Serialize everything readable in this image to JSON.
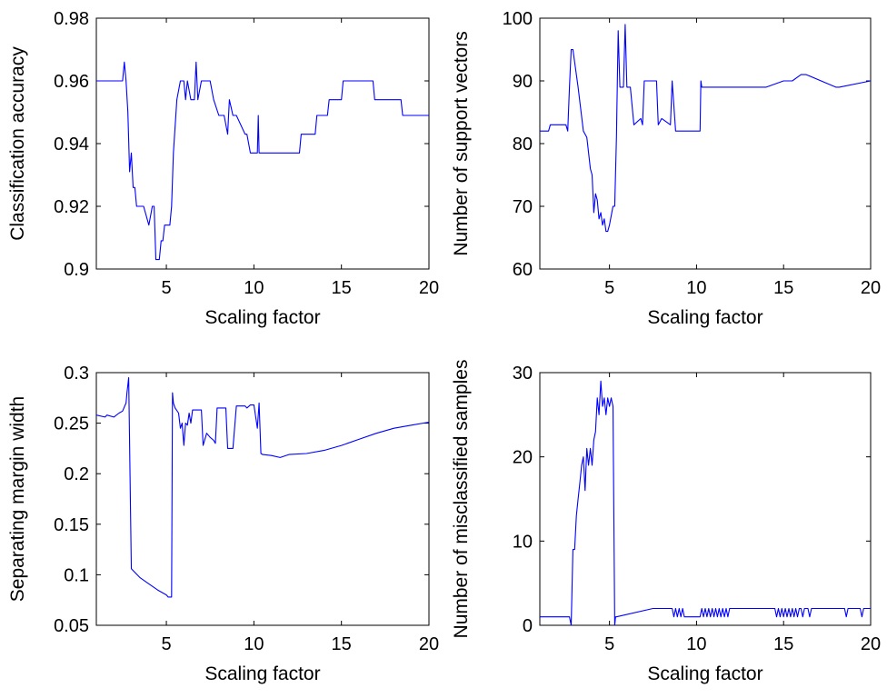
{
  "figure": {
    "line_color": "#0000ff",
    "grid": false
  },
  "chart_data": [
    {
      "type": "line",
      "title": "",
      "xlabel": "Scaling factor",
      "ylabel": "Classification accuracy",
      "xlim": [
        1,
        20
      ],
      "ylim": [
        0.9,
        0.98
      ],
      "xticks": [
        5,
        10,
        15,
        20
      ],
      "xtick_labels": [
        "5",
        "10",
        "15",
        "20"
      ],
      "yticks": [
        0.9,
        0.92,
        0.94,
        0.96,
        0.98
      ],
      "ytick_labels": [
        "0.9",
        "0.92",
        "0.94",
        "0.96",
        "0.98"
      ],
      "series": [
        {
          "x": [
            1,
            2.5,
            2.6,
            2.7,
            2.8,
            2.9,
            3.0,
            3.1,
            3.2,
            3.3,
            3.4,
            3.5,
            3.7,
            4.0,
            4.2,
            4.3,
            4.4,
            4.5,
            4.6,
            4.7,
            4.8,
            4.9,
            5.0,
            5.2,
            5.3,
            5.4,
            5.6,
            5.8,
            6.0,
            6.1,
            6.2,
            6.4,
            6.5,
            6.6,
            6.7,
            6.8,
            7.0,
            7.5,
            7.7,
            8.0,
            8.3,
            8.5,
            8.6,
            8.8,
            9.0,
            9.5,
            9.6,
            9.8,
            10.0,
            10.2,
            10.25,
            10.3,
            10.5,
            11.0,
            12.0,
            12.6,
            12.7,
            13.5,
            13.6,
            14.2,
            14.3,
            15.0,
            15.1,
            16.8,
            16.9,
            18.4,
            18.5,
            20
          ],
          "y": [
            0.96,
            0.96,
            0.966,
            0.96,
            0.95,
            0.931,
            0.937,
            0.926,
            0.926,
            0.92,
            0.92,
            0.92,
            0.92,
            0.914,
            0.92,
            0.92,
            0.903,
            0.903,
            0.903,
            0.909,
            0.909,
            0.914,
            0.914,
            0.914,
            0.92,
            0.937,
            0.954,
            0.96,
            0.96,
            0.954,
            0.96,
            0.954,
            0.954,
            0.954,
            0.966,
            0.954,
            0.96,
            0.96,
            0.954,
            0.949,
            0.949,
            0.943,
            0.954,
            0.949,
            0.949,
            0.943,
            0.943,
            0.937,
            0.937,
            0.937,
            0.949,
            0.937,
            0.937,
            0.937,
            0.937,
            0.937,
            0.943,
            0.943,
            0.949,
            0.949,
            0.954,
            0.954,
            0.96,
            0.96,
            0.954,
            0.954,
            0.949,
            0.949
          ]
        }
      ]
    },
    {
      "type": "line",
      "title": "",
      "xlabel": "Scaling factor",
      "ylabel": "Number of support vectors",
      "xlim": [
        1,
        20
      ],
      "ylim": [
        60,
        100
      ],
      "xticks": [
        5,
        10,
        15,
        20
      ],
      "xtick_labels": [
        "5",
        "10",
        "15",
        "20"
      ],
      "yticks": [
        60,
        70,
        80,
        90,
        100
      ],
      "ytick_labels": [
        "60",
        "70",
        "80",
        "90",
        "100"
      ],
      "series": [
        {
          "x": [
            1,
            1.5,
            1.6,
            2.5,
            2.6,
            2.7,
            2.8,
            2.9,
            3.0,
            3.2,
            3.5,
            3.7,
            3.9,
            4.0,
            4.1,
            4.2,
            4.3,
            4.4,
            4.5,
            4.6,
            4.7,
            4.8,
            4.9,
            5.0,
            5.2,
            5.3,
            5.4,
            5.5,
            5.6,
            5.8,
            5.9,
            6.0,
            6.2,
            6.4,
            6.8,
            6.9,
            7.0,
            7.7,
            7.8,
            8.0,
            8.5,
            8.6,
            8.8,
            9.0,
            9.2,
            9.5,
            10.1,
            10.2,
            10.25,
            10.3,
            10.5,
            14.0,
            15.0,
            15.5,
            16.0,
            16.3,
            18.0,
            18.2,
            20
          ],
          "y": [
            82,
            82,
            83,
            83,
            82,
            89,
            95,
            95,
            93,
            89,
            82,
            81,
            76,
            75,
            69,
            72,
            71,
            68,
            69,
            67,
            68,
            66,
            66,
            67,
            70,
            70,
            81,
            98,
            89,
            89,
            99,
            89,
            89,
            83,
            84,
            83,
            90,
            90,
            83,
            84,
            83,
            90,
            82,
            82,
            82,
            82,
            82,
            82,
            90,
            89,
            89,
            89,
            90,
            90,
            91,
            91,
            89,
            89,
            90
          ]
        }
      ]
    },
    {
      "type": "line",
      "title": "",
      "xlabel": "Scaling factor",
      "ylabel": "Separating margin width",
      "xlim": [
        1,
        20
      ],
      "ylim": [
        0.05,
        0.3
      ],
      "xticks": [
        5,
        10,
        15,
        20
      ],
      "xtick_labels": [
        "5",
        "10",
        "15",
        "20"
      ],
      "yticks": [
        0.05,
        0.1,
        0.15,
        0.2,
        0.25,
        0.3
      ],
      "ytick_labels": [
        "0.05",
        "0.1",
        "0.15",
        "0.2",
        "0.25",
        "0.3"
      ],
      "series": [
        {
          "x": [
            1,
            1.5,
            1.6,
            2.0,
            2.3,
            2.5,
            2.7,
            2.75,
            2.85,
            3.0,
            3.5,
            4.0,
            4.5,
            5.0,
            5.1,
            5.3,
            5.35,
            5.4,
            5.5,
            5.7,
            5.8,
            5.9,
            6.0,
            6.1,
            6.2,
            6.3,
            6.4,
            6.5,
            6.6,
            6.7,
            7.0,
            7.1,
            7.3,
            7.5,
            7.7,
            7.8,
            7.9,
            8.0,
            8.4,
            8.5,
            8.8,
            9.0,
            9.5,
            9.6,
            9.8,
            10.0,
            10.2,
            10.3,
            10.4,
            10.5,
            11.0,
            11.5,
            12.0,
            13.0,
            14.0,
            15.0,
            16.0,
            17.0,
            18.0,
            19.0,
            20.0
          ],
          "y": [
            0.258,
            0.256,
            0.258,
            0.256,
            0.26,
            0.262,
            0.27,
            0.28,
            0.295,
            0.106,
            0.097,
            0.091,
            0.085,
            0.08,
            0.078,
            0.078,
            0.28,
            0.27,
            0.265,
            0.26,
            0.245,
            0.25,
            0.228,
            0.25,
            0.248,
            0.26,
            0.25,
            0.263,
            0.263,
            0.263,
            0.263,
            0.228,
            0.24,
            0.236,
            0.233,
            0.23,
            0.265,
            0.265,
            0.265,
            0.225,
            0.225,
            0.267,
            0.267,
            0.265,
            0.268,
            0.268,
            0.245,
            0.27,
            0.22,
            0.219,
            0.218,
            0.216,
            0.219,
            0.22,
            0.223,
            0.228,
            0.234,
            0.24,
            0.245,
            0.248,
            0.251
          ]
        }
      ]
    },
    {
      "type": "line",
      "title": "",
      "xlabel": "Scaling factor",
      "ylabel": "Number of misclassified samples",
      "xlim": [
        1,
        20
      ],
      "ylim": [
        0,
        30
      ],
      "xticks": [
        5,
        10,
        15,
        20
      ],
      "xtick_labels": [
        "5",
        "10",
        "15",
        "20"
      ],
      "yticks": [
        0,
        10,
        20,
        30
      ],
      "ytick_labels": [
        "0",
        "10",
        "20",
        "30"
      ],
      "series": [
        {
          "x": [
            1,
            2.7,
            2.8,
            2.9,
            3.0,
            3.1,
            3.2,
            3.3,
            3.4,
            3.5,
            3.6,
            3.7,
            3.8,
            3.9,
            4.0,
            4.1,
            4.2,
            4.3,
            4.4,
            4.5,
            4.6,
            4.7,
            4.8,
            4.9,
            5.0,
            5.1,
            5.2,
            5.3,
            5.35,
            5.4,
            7.5,
            7.6,
            8.6,
            8.7,
            8.8,
            8.9,
            9.0,
            9.1,
            9.2,
            9.3,
            9.5,
            10.0,
            10.2,
            10.3,
            10.4,
            10.5,
            10.6,
            10.7,
            10.8,
            10.9,
            11.0,
            11.1,
            11.2,
            11.3,
            11.4,
            11.5,
            11.6,
            11.7,
            11.8,
            11.9,
            12.0,
            14.5,
            14.6,
            14.7,
            14.8,
            14.9,
            15.0,
            15.1,
            15.2,
            15.3,
            15.4,
            15.5,
            15.6,
            15.7,
            15.8,
            15.9,
            16.0,
            16.1,
            16.2,
            16.4,
            16.5,
            16.6,
            16.7,
            17.0,
            18.0,
            18.5,
            18.6,
            18.7,
            19.0,
            19.4,
            19.5,
            19.6,
            19.7,
            20
          ],
          "y": [
            1,
            1,
            0,
            9,
            9,
            13,
            15,
            17,
            19,
            20,
            16,
            21,
            19,
            21,
            19,
            22,
            23,
            27,
            25,
            29,
            26,
            27,
            25,
            27,
            26,
            27,
            26,
            0,
            1,
            1,
            2,
            2,
            2,
            1,
            2,
            1,
            2,
            1,
            2,
            1,
            1,
            1,
            1,
            2,
            1,
            2,
            1,
            2,
            1,
            2,
            1,
            2,
            1,
            2,
            1,
            2,
            1,
            2,
            1,
            2,
            2,
            2,
            1,
            2,
            1,
            2,
            1,
            2,
            1,
            2,
            1,
            2,
            1,
            2,
            1,
            2,
            2,
            1,
            2,
            2,
            1,
            2,
            2,
            2,
            2,
            2,
            1,
            2,
            2,
            2,
            1,
            2,
            2,
            2
          ]
        }
      ]
    }
  ]
}
